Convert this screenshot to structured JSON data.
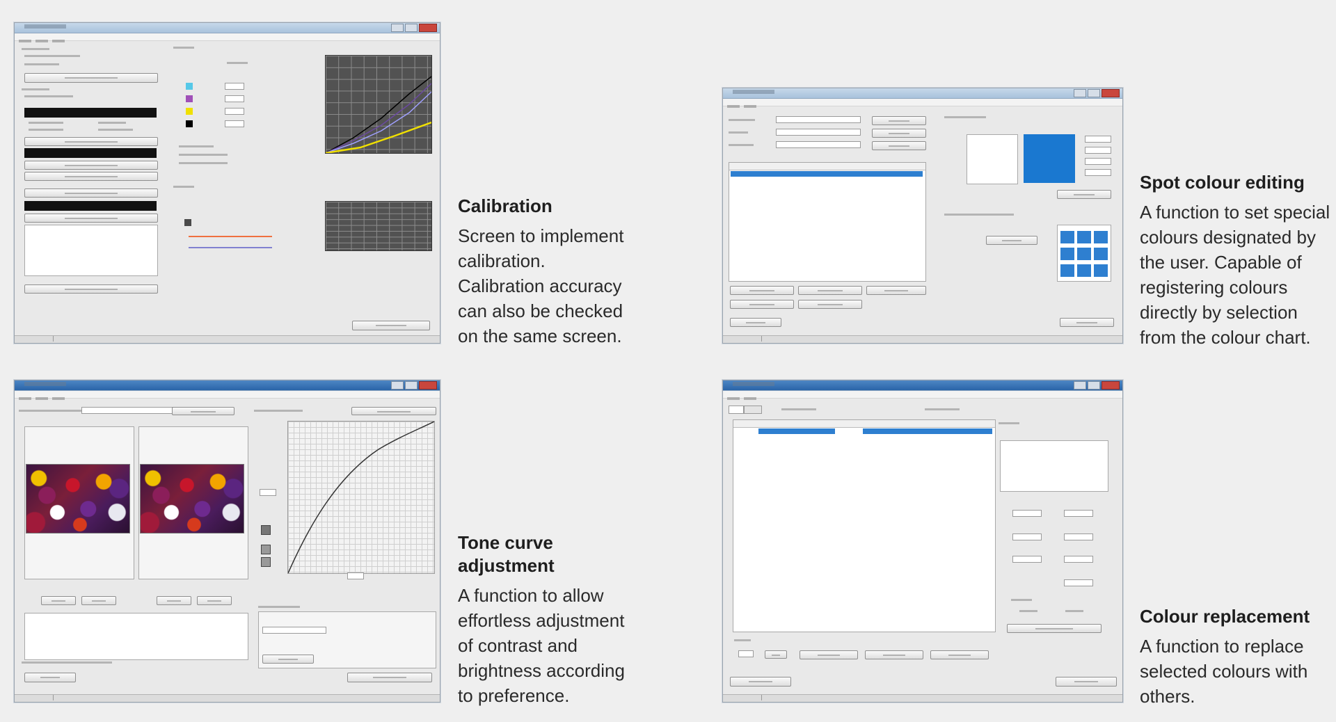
{
  "features": [
    {
      "title": "Calibration",
      "description": "Screen to implement\ncalibration.\nCalibration accuracy\ncan also be checked\non the same screen."
    },
    {
      "title": "Spot colour editing",
      "description": "A function to set special\ncolours designated by\nthe user. Capable of\nregistering colours\ndirectly by selection\nfrom the colour chart."
    },
    {
      "title": "Tone curve\nadjustment",
      "description": "A function to allow\neffortless adjustment\nof contrast and\nbrightness according\nto preference."
    },
    {
      "title": "Colour replacement",
      "description": "A function to replace\nselected colours with\nothers."
    }
  ],
  "colors": {
    "cyan_swatch": "#56c8e8",
    "magenta_swatch": "#a050b8",
    "yellow_swatch": "#f0e000",
    "black_swatch": "#000000",
    "spot_blue": "#1a78d0",
    "selection_blue": "#2e7fd0"
  }
}
